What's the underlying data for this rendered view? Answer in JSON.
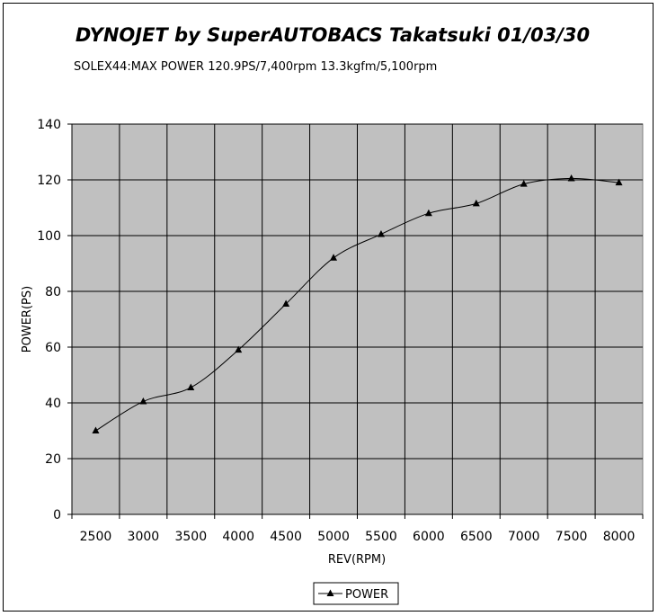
{
  "chart_data": {
    "type": "line",
    "title": "DYNOJET by SuperAUTOBACS Takatsuki 01/03/30",
    "subtitle": "SOLEX44:MAX POWER 120.9PS/7,400rpm 13.3kgfm/5,100rpm",
    "xlabel": "REV(RPM)",
    "ylabel": "POWER(PS)",
    "categories": [
      "2500",
      "3000",
      "3500",
      "4000",
      "4500",
      "5000",
      "5500",
      "6000",
      "6500",
      "7000",
      "7500",
      "8000"
    ],
    "series": [
      {
        "name": "POWER",
        "values": [
          30,
          40.5,
          45.5,
          59,
          75.5,
          92,
          100.5,
          108,
          111.5,
          118.5,
          120.5,
          119
        ]
      }
    ],
    "ylim": [
      0,
      140
    ],
    "yticks": [
      0,
      20,
      40,
      60,
      80,
      100,
      120,
      140
    ],
    "grid": true,
    "legend": "bottom",
    "colors": {
      "plot_background": "#c0c0c0",
      "line": "#000000",
      "grid": "#000000"
    }
  }
}
